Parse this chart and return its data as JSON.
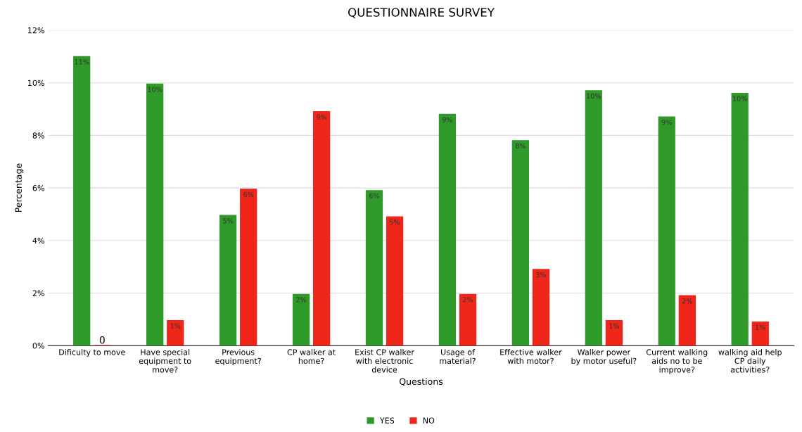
{
  "chart_data": {
    "type": "bar",
    "title": "QUESTIONNAIRE SURVEY",
    "xlabel": "Questions",
    "ylabel": "Percentage",
    "categories": [
      "Dificulty to move",
      "Have special\nequipment to\nmove?",
      "Previous\nequipment?",
      "CP walker at\nhome?",
      "Exist CP walker\nwith electronic\ndevice",
      "Usage of\nmaterial?",
      "Effective walker\nwith motor?",
      "Walker power\nby motor useful?",
      "Current walking\naids no to be\nimprove?",
      "walking aid help\nCP daily\nactivities?"
    ],
    "series": [
      {
        "name": "YES",
        "color": "#2f9a2a",
        "values": [
          11,
          9.95,
          4.95,
          1.95,
          5.9,
          8.8,
          7.8,
          9.7,
          8.7,
          9.6
        ],
        "value_labels": [
          "11%",
          "10%",
          "5%",
          "2%",
          "6%",
          "9%",
          "8%",
          "10%",
          "9%",
          "10%"
        ]
      },
      {
        "name": "NO",
        "color": "#f0261a",
        "values": [
          0,
          0.95,
          5.95,
          8.9,
          4.9,
          1.95,
          2.9,
          0.95,
          1.9,
          0.9
        ],
        "value_labels": [
          "0",
          "1%",
          "6%",
          "9%",
          "5%",
          "2%",
          "3%",
          "1%",
          "2%",
          "1%"
        ]
      }
    ],
    "ylim": [
      0,
      12
    ],
    "yticks": [
      {
        "value": 0,
        "label": "0%"
      },
      {
        "value": 2,
        "label": "2%"
      },
      {
        "value": 4,
        "label": "4%"
      },
      {
        "value": 6,
        "label": "6%"
      },
      {
        "value": 8,
        "label": "8%"
      },
      {
        "value": 10,
        "label": "10%"
      },
      {
        "value": 12,
        "label": "12%"
      }
    ],
    "grid": "y",
    "legend": "bottom"
  }
}
